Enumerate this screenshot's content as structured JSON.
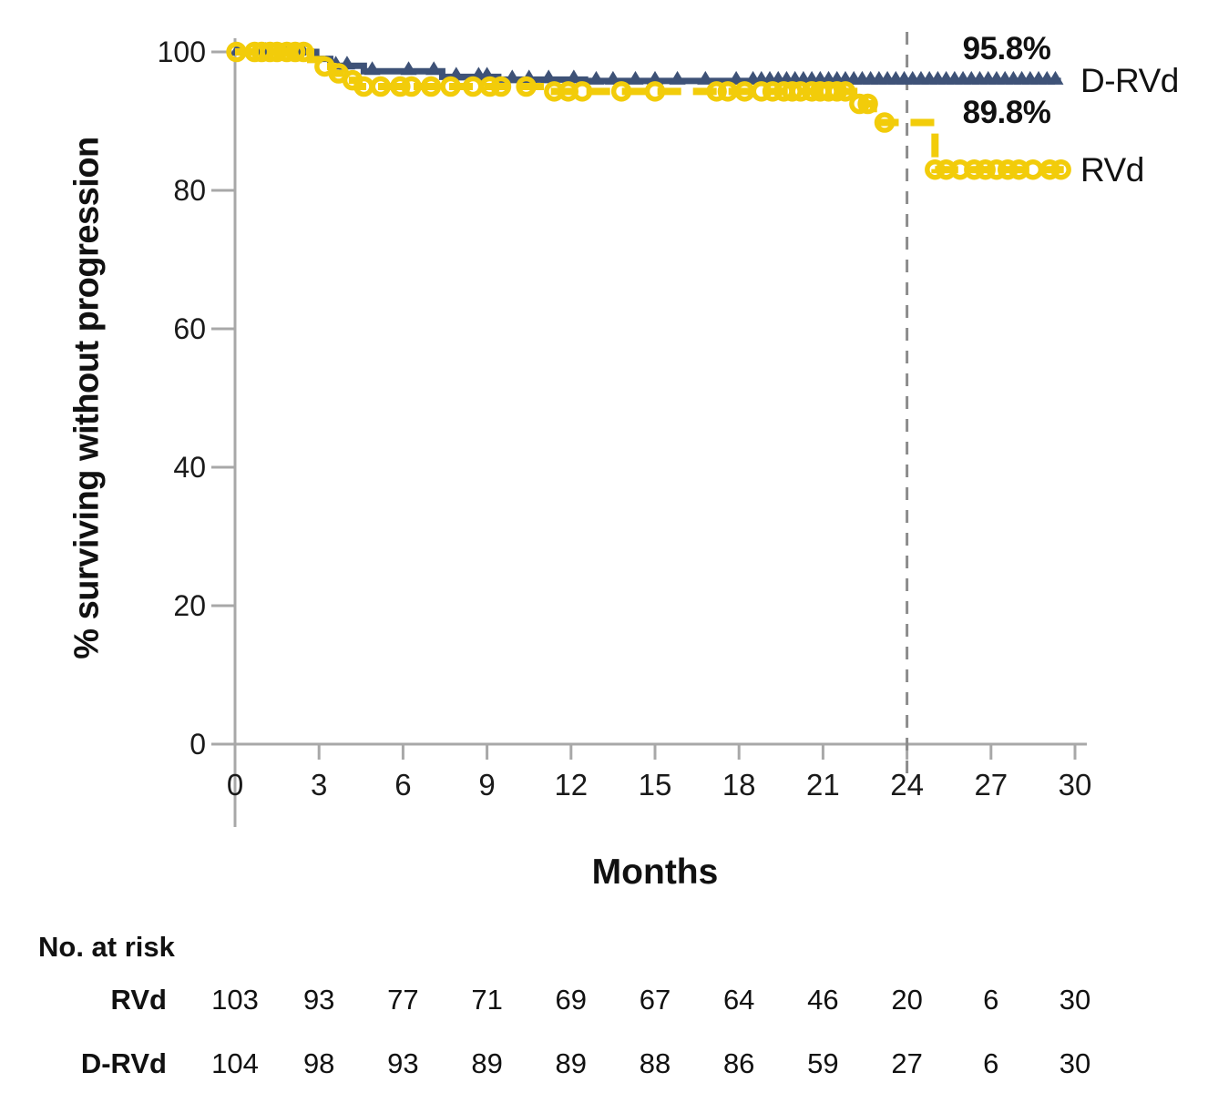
{
  "figure": {
    "y_axis_title": "% surviving without progression",
    "x_axis_title": "Months",
    "annotations": {
      "drvd_landmark": "95.8%",
      "rvd_landmark": "89.8%",
      "drvd_label": "D-RVd",
      "rvd_label": "RVd"
    },
    "at_risk": {
      "header": "No. at risk",
      "rows": [
        {
          "label": "RVd",
          "values": [
            "103",
            "93",
            "77",
            "71",
            "69",
            "67",
            "64",
            "46",
            "20",
            "6",
            "30"
          ]
        },
        {
          "label": "D-RVd",
          "values": [
            "104",
            "98",
            "93",
            "89",
            "89",
            "88",
            "86",
            "59",
            "27",
            "6",
            "30"
          ]
        }
      ]
    }
  },
  "chart_data": {
    "type": "line",
    "subtype": "kaplan-meier-step",
    "title": "",
    "xlabel": "Months",
    "ylabel": "% surviving without progression",
    "xlim": [
      0,
      30
    ],
    "ylim": [
      0,
      100
    ],
    "x_ticks": [
      0,
      3,
      6,
      9,
      12,
      15,
      18,
      21,
      24,
      27,
      30
    ],
    "y_ticks": [
      0,
      20,
      40,
      60,
      80,
      100
    ],
    "grid": false,
    "legend_position": "right-of-curves",
    "reference_line_x": 24,
    "colors": {
      "drvd": "#3E5277",
      "rvd": "#F2CC0A",
      "axis": "#A8A8A8",
      "reference": "#8C8C8C",
      "text": "#1a1a1a"
    },
    "series": [
      {
        "name": "D-RVd",
        "color": "#3E5277",
        "line_style": "solid",
        "marker": "triangle",
        "landmark": {
          "x": 24,
          "y": 95.8,
          "label": "95.8%"
        },
        "steps": [
          [
            0,
            100
          ],
          [
            2.9,
            99.0
          ],
          [
            3.4,
            98.0
          ],
          [
            4.6,
            97.2
          ],
          [
            7.4,
            96.4
          ],
          [
            9.4,
            96.0
          ],
          [
            12.5,
            95.8
          ],
          [
            29.5,
            95.8
          ]
        ],
        "censor_x": [
          0.1,
          1.1,
          1.8,
          2.4,
          3.6,
          4.0,
          4.9,
          6.2,
          7.1,
          7.9,
          8.7,
          9.0,
          9.9,
          10.5,
          11.2,
          12.1,
          12.9,
          13.5,
          14.3,
          15.0,
          15.8,
          16.8,
          17.9,
          18.5,
          18.8,
          19.1,
          19.4,
          19.7,
          20.0,
          20.3,
          20.6,
          20.9,
          21.2,
          21.5,
          21.8,
          22.1,
          22.4,
          22.7,
          23.0,
          23.3,
          23.6,
          23.9,
          24.2,
          24.5,
          24.8,
          25.1,
          25.4,
          25.7,
          26.0,
          26.3,
          26.6,
          26.9,
          27.2,
          27.5,
          27.8,
          28.1,
          28.4,
          28.7,
          29.0,
          29.3
        ]
      },
      {
        "name": "RVd",
        "color": "#F2CC0A",
        "line_style": "dashed",
        "marker": "circle",
        "landmark": {
          "x": 24,
          "y": 89.8,
          "label": "89.8%"
        },
        "steps": [
          [
            0,
            100
          ],
          [
            2.7,
            98.9
          ],
          [
            3.1,
            97.9
          ],
          [
            3.5,
            96.9
          ],
          [
            3.9,
            95.9
          ],
          [
            4.4,
            95.0
          ],
          [
            11.1,
            94.3
          ],
          [
            22.1,
            92.5
          ],
          [
            22.8,
            89.8
          ],
          [
            25.0,
            83.0
          ],
          [
            29.6,
            83.0
          ]
        ],
        "censor_x": [
          0.05,
          0.7,
          0.95,
          1.25,
          1.5,
          1.85,
          2.15,
          2.45,
          3.2,
          3.7,
          4.2,
          4.6,
          5.2,
          5.9,
          6.3,
          7.0,
          7.7,
          8.5,
          9.1,
          9.5,
          10.4,
          11.4,
          11.9,
          12.4,
          13.8,
          15.0,
          17.2,
          17.6,
          18.2,
          18.8,
          19.2,
          19.6,
          19.9,
          20.2,
          20.6,
          20.9,
          21.2,
          21.5,
          21.8,
          22.3,
          22.6,
          23.2,
          25.0,
          25.4,
          25.9,
          26.4,
          26.8,
          27.2,
          27.6,
          28.0,
          28.5,
          29.1,
          29.5
        ]
      }
    ]
  }
}
